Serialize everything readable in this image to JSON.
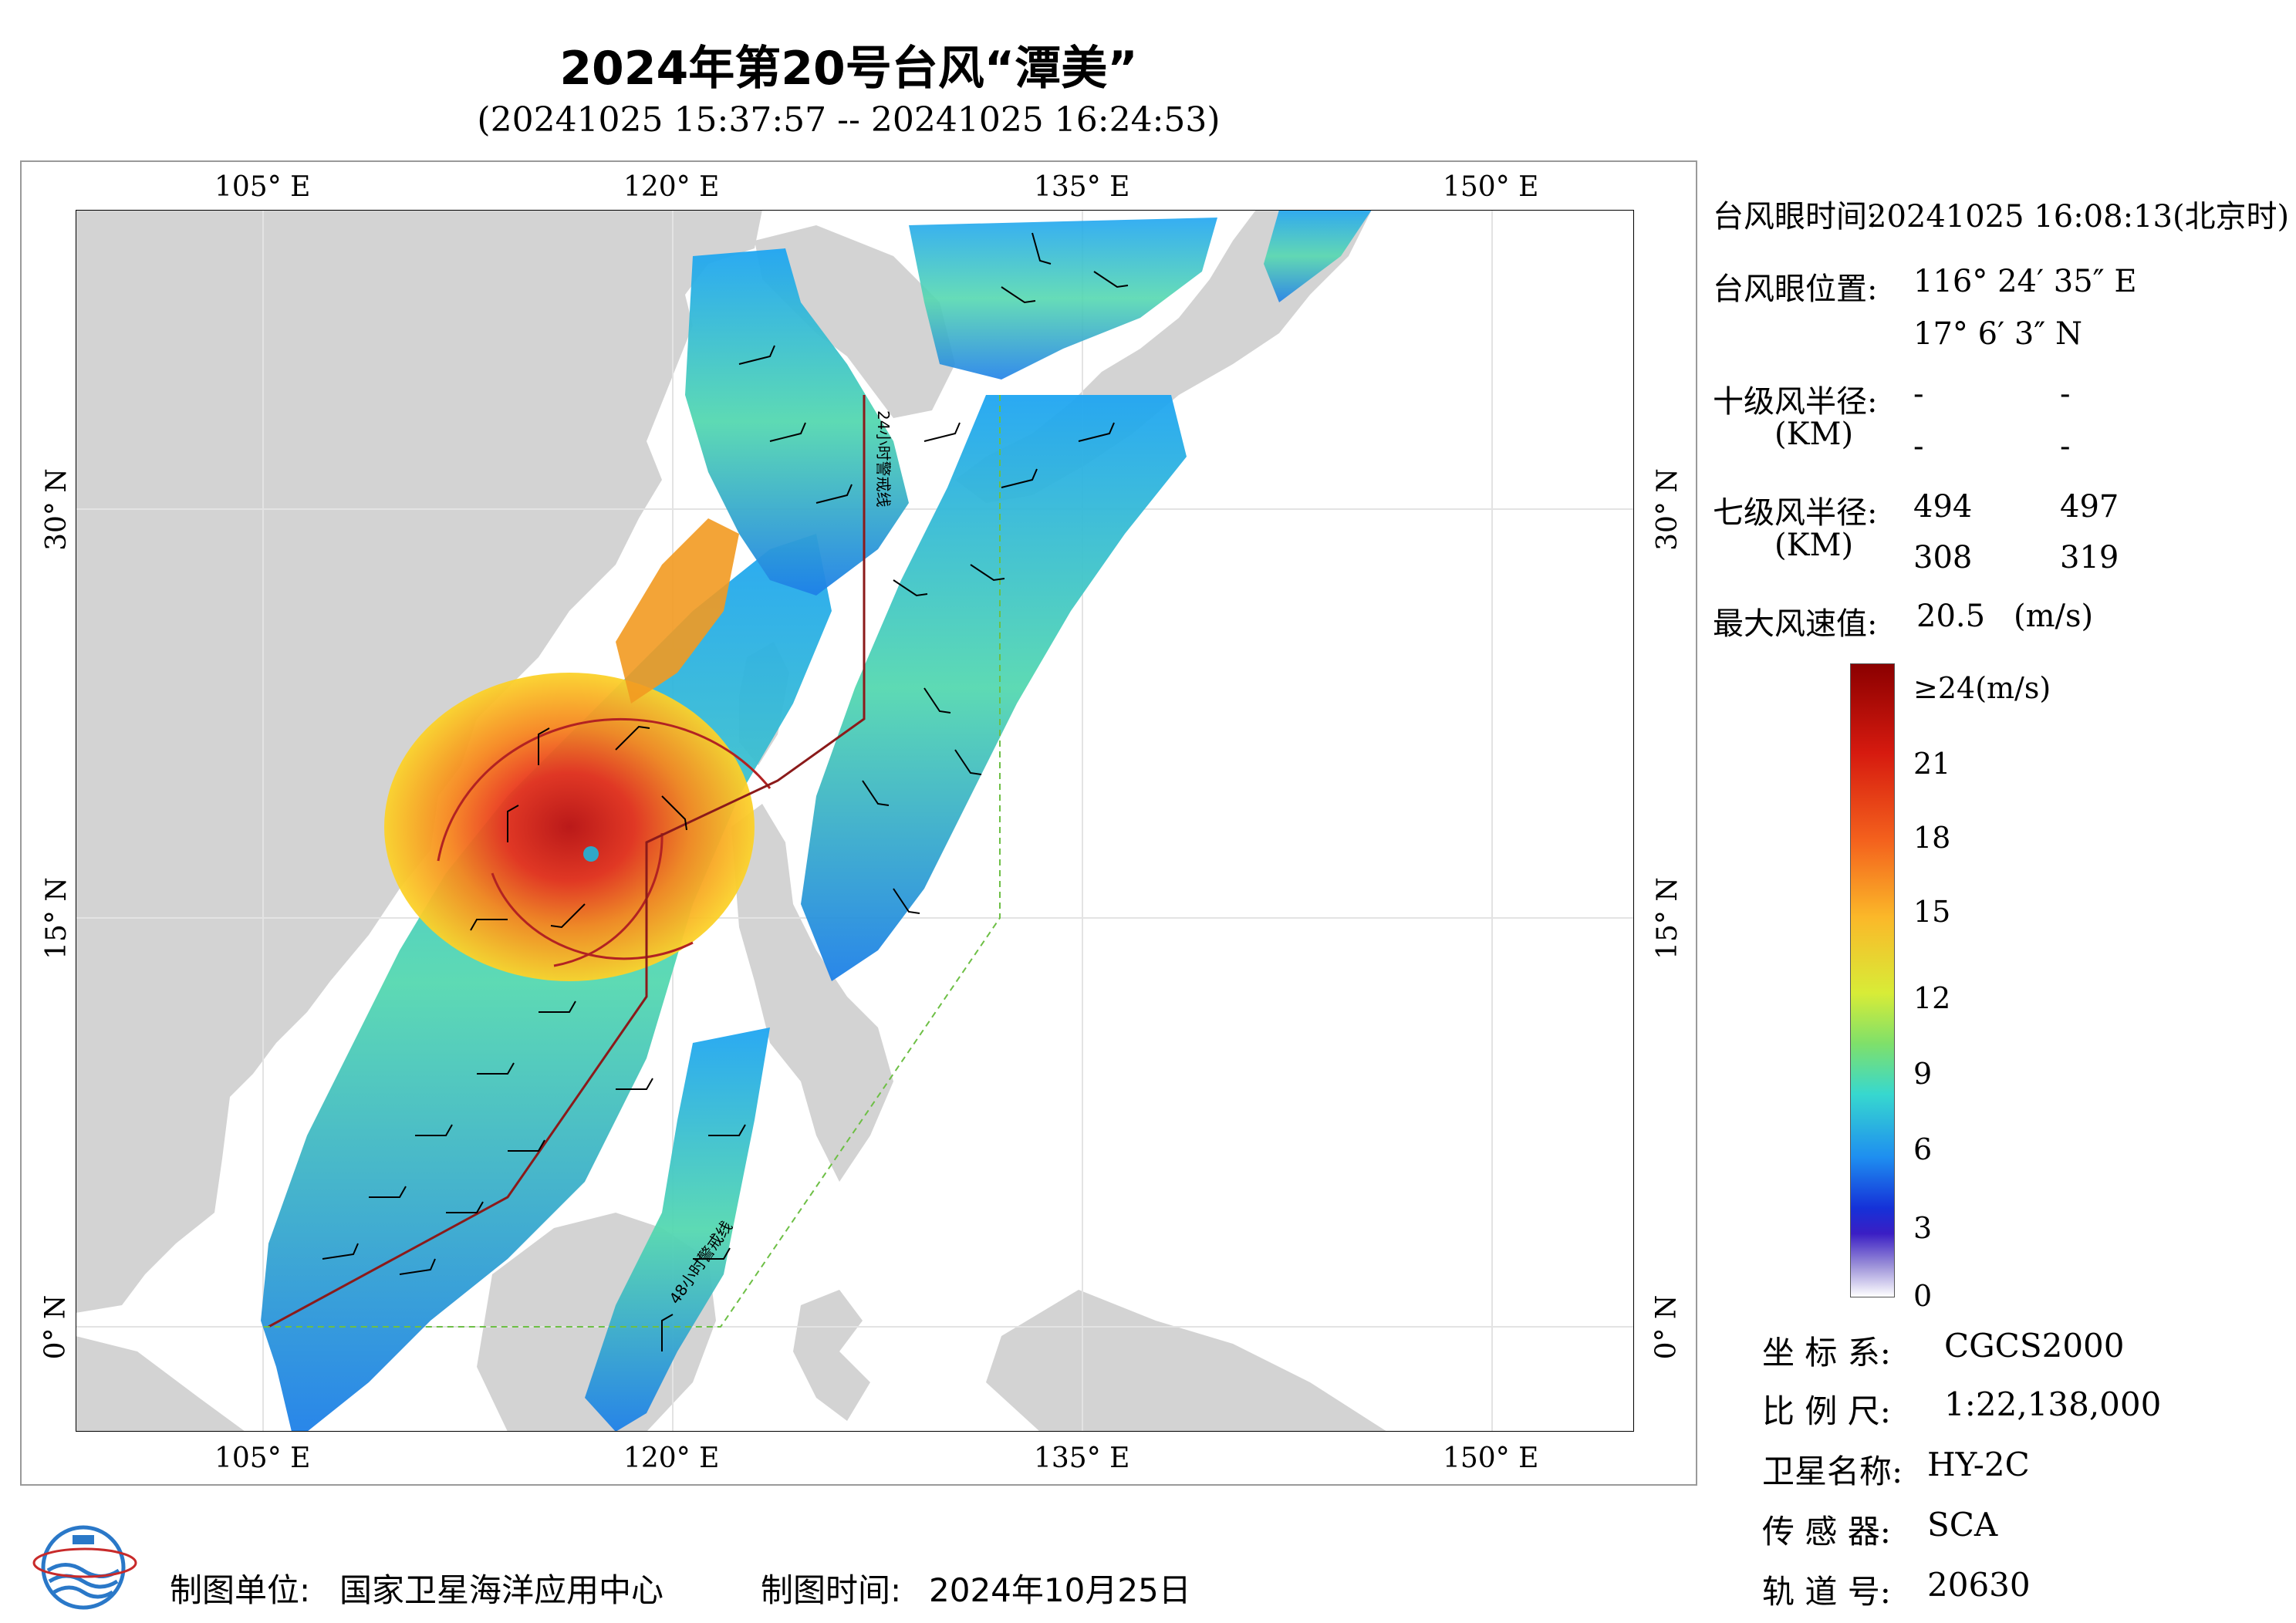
{
  "title": "2024年第20号台风“潭美”",
  "subtitle": "(20241025 15:37:57 -- 20241025 16:24:53)",
  "map": {
    "lon_ticks": [
      "105° E",
      "120° E",
      "135° E",
      "150° E"
    ],
    "lat_ticks": [
      "30° N",
      "15° N",
      "0° N"
    ],
    "line_24h_label": "24小时警戒线",
    "line_48h_label": "48小时警戒线"
  },
  "info": {
    "eye_time_label": "台风眼时间:",
    "eye_time_value": "20241025 16:08:13(北京时)",
    "eye_pos_label": "台风眼位置:",
    "eye_lon": "116° 24′ 35″ E",
    "eye_lat": "17° 6′ 3″ N",
    "r10_label": "十级风半径:",
    "r10_unit": "(KM)",
    "r10_values": [
      "-",
      "-",
      "-",
      "-"
    ],
    "r7_label": "七级风半径:",
    "r7_unit": "(KM)",
    "r7_values": [
      "494",
      "497",
      "308",
      "319"
    ],
    "max_wind_label": "最大风速值:",
    "max_wind_value": "20.5",
    "max_wind_unit": "(m/s)"
  },
  "colorbar": {
    "labels": [
      "≥24(m/s)",
      "21",
      "18",
      "15",
      "12",
      "9",
      "6",
      "3",
      "0"
    ],
    "colors": [
      "#8b0000",
      "#d61a0f",
      "#f4621d",
      "#fbb829",
      "#d8ec37",
      "#7fe06a",
      "#37d8cf",
      "#1e8ef0",
      "#1531d8",
      "#3a1ec4",
      "#d8d4ee"
    ]
  },
  "meta": {
    "crs_label": "坐 标 系:",
    "crs_value": "CGCS2000",
    "scale_label": "比 例 尺:",
    "scale_value": "1:22,138,000",
    "sat_label": "卫星名称:",
    "sat_value": "HY-2C",
    "sensor_label": "传 感 器:",
    "sensor_value": "SCA",
    "orbit_label": "轨 道 号:",
    "orbit_value": "20630"
  },
  "footer": {
    "org_label": "制图单位:",
    "org_value": "国家卫星海洋应用中心",
    "date_label": "制图时间:",
    "date_value": "2024年10月25日"
  },
  "colors": {
    "ocean": "#ffffff",
    "land": "#d3d3d3",
    "frame": "#9a9a9a",
    "line_24h": "#8b1a1a",
    "line_48h": "#6dbf45",
    "wind_radius": "#b22222"
  }
}
